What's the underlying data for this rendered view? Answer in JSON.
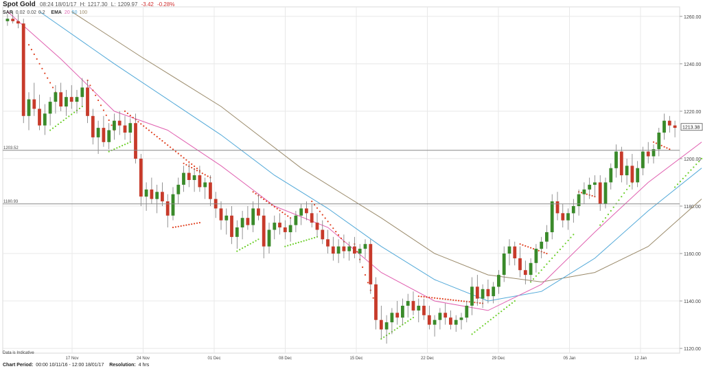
{
  "header": {
    "title": "Spot Gold",
    "timestamp": "08:24 18/01/17",
    "high_label": "H:",
    "high": "1217.30",
    "low_label": "L:",
    "low": "1209.97",
    "change": "-3.42",
    "change_pct": "-0.28%"
  },
  "indicators": {
    "sar_label": "SAR",
    "sar_params": [
      "0.02",
      "0.02",
      "0.2"
    ],
    "ema_label": "EMA",
    "ema_params": [
      "20",
      "50",
      "100"
    ]
  },
  "footer": {
    "indicative": "Data is Indicative",
    "period_label": "Chart Period:",
    "period": "00:00 10/11/16 - 12:00 18/01/17",
    "resolution_label": "Resolution:",
    "resolution": "4 hrs"
  },
  "chart_data": {
    "type": "candlestick",
    "title": "Spot Gold",
    "ylim": [
      1118,
      1264
    ],
    "y_ticks": [
      1120,
      1140,
      1160,
      1180,
      1200,
      1220,
      1240,
      1260
    ],
    "y_tick_labels": [
      "1120.00",
      "1140.00",
      "1160.00",
      "1180.00",
      "1200.00",
      "1220.00",
      "1240.00",
      "1260.00"
    ],
    "x_tick_labels": [
      "17 Nov",
      "24 Nov",
      "01 Dec",
      "08 Dec",
      "15 Dec",
      "22 Dec",
      "29 Dec",
      "05 Jan",
      "12 Jan"
    ],
    "last_price": "1213.38",
    "reference_lines": [
      {
        "value": 1203.52,
        "label": "1203.52"
      },
      {
        "value": 1180.93,
        "label": "1180.93"
      }
    ],
    "colors": {
      "up": "#3a8a2a",
      "down": "#c73a2a",
      "ema20": "#e060b0",
      "ema50": "#50a8d8",
      "ema100": "#9a8a6a",
      "sar_up": "#6ccf2a",
      "sar_down": "#e04020",
      "grid": "#e8e8e8",
      "ref": "#888888"
    },
    "grid": true,
    "candles": [
      [
        1258,
        1261,
        1256,
        1259
      ],
      [
        1259,
        1262,
        1257,
        1258
      ],
      [
        1258,
        1261,
        1255,
        1257
      ],
      [
        1257,
        1259,
        1215,
        1218
      ],
      [
        1218,
        1228,
        1212,
        1225
      ],
      [
        1225,
        1232,
        1218,
        1221
      ],
      [
        1221,
        1227,
        1212,
        1214
      ],
      [
        1214,
        1223,
        1210,
        1219
      ],
      [
        1219,
        1226,
        1214,
        1224
      ],
      [
        1224,
        1231,
        1219,
        1228
      ],
      [
        1228,
        1232,
        1220,
        1222
      ],
      [
        1222,
        1229,
        1218,
        1226
      ],
      [
        1226,
        1231,
        1221,
        1224
      ],
      [
        1224,
        1229,
        1219,
        1226
      ],
      [
        1226,
        1234,
        1222,
        1230
      ],
      [
        1230,
        1233,
        1215,
        1218
      ],
      [
        1218,
        1221,
        1206,
        1209
      ],
      [
        1209,
        1216,
        1202,
        1213
      ],
      [
        1213,
        1218,
        1205,
        1207
      ],
      [
        1207,
        1215,
        1204,
        1212
      ],
      [
        1212,
        1219,
        1208,
        1216
      ],
      [
        1216,
        1220,
        1210,
        1214
      ],
      [
        1214,
        1218,
        1208,
        1211
      ],
      [
        1211,
        1217,
        1207,
        1215
      ],
      [
        1215,
        1219,
        1198,
        1200
      ],
      [
        1200,
        1202,
        1180,
        1184
      ],
      [
        1184,
        1190,
        1178,
        1187
      ],
      [
        1187,
        1192,
        1181,
        1183
      ],
      [
        1183,
        1189,
        1177,
        1186
      ],
      [
        1186,
        1190,
        1180,
        1182
      ],
      [
        1182,
        1185,
        1171,
        1176
      ],
      [
        1176,
        1188,
        1174,
        1185
      ],
      [
        1185,
        1192,
        1181,
        1189
      ],
      [
        1189,
        1197,
        1186,
        1194
      ],
      [
        1194,
        1198,
        1188,
        1191
      ],
      [
        1191,
        1196,
        1186,
        1193
      ],
      [
        1193,
        1197,
        1186,
        1188
      ],
      [
        1188,
        1192,
        1183,
        1190
      ],
      [
        1190,
        1193,
        1180,
        1183
      ],
      [
        1183,
        1186,
        1175,
        1179
      ],
      [
        1179,
        1182,
        1170,
        1174
      ],
      [
        1174,
        1179,
        1168,
        1176
      ],
      [
        1176,
        1180,
        1164,
        1167
      ],
      [
        1167,
        1174,
        1162,
        1171
      ],
      [
        1171,
        1178,
        1166,
        1175
      ],
      [
        1175,
        1180,
        1170,
        1172
      ],
      [
        1172,
        1182,
        1169,
        1179
      ],
      [
        1179,
        1185,
        1174,
        1176
      ],
      [
        1176,
        1179,
        1158,
        1163
      ],
      [
        1163,
        1173,
        1160,
        1170
      ],
      [
        1170,
        1176,
        1166,
        1173
      ],
      [
        1173,
        1177,
        1168,
        1171
      ],
      [
        1171,
        1174,
        1166,
        1169
      ],
      [
        1169,
        1175,
        1165,
        1172
      ],
      [
        1172,
        1178,
        1169,
        1176
      ],
      [
        1176,
        1181,
        1172,
        1179
      ],
      [
        1179,
        1182,
        1174,
        1177
      ],
      [
        1177,
        1181,
        1171,
        1173
      ],
      [
        1173,
        1177,
        1167,
        1170
      ],
      [
        1170,
        1174,
        1164,
        1166
      ],
      [
        1166,
        1170,
        1160,
        1163
      ],
      [
        1163,
        1167,
        1157,
        1160
      ],
      [
        1160,
        1166,
        1156,
        1163
      ],
      [
        1163,
        1168,
        1158,
        1161
      ],
      [
        1161,
        1165,
        1157,
        1163
      ],
      [
        1163,
        1167,
        1158,
        1160
      ],
      [
        1160,
        1164,
        1156,
        1162
      ],
      [
        1162,
        1166,
        1158,
        1164
      ],
      [
        1164,
        1166,
        1143,
        1147
      ],
      [
        1147,
        1150,
        1128,
        1132
      ],
      [
        1132,
        1138,
        1124,
        1128
      ],
      [
        1128,
        1134,
        1122,
        1131
      ],
      [
        1131,
        1137,
        1126,
        1135
      ],
      [
        1135,
        1140,
        1130,
        1133
      ],
      [
        1133,
        1141,
        1130,
        1138
      ],
      [
        1138,
        1143,
        1133,
        1140
      ],
      [
        1140,
        1144,
        1134,
        1136
      ],
      [
        1136,
        1141,
        1131,
        1138
      ],
      [
        1138,
        1141,
        1132,
        1134
      ],
      [
        1134,
        1138,
        1128,
        1130
      ],
      [
        1130,
        1134,
        1125,
        1132
      ],
      [
        1132,
        1137,
        1128,
        1135
      ],
      [
        1135,
        1139,
        1130,
        1133
      ],
      [
        1133,
        1136,
        1128,
        1130
      ],
      [
        1130,
        1134,
        1127,
        1132
      ],
      [
        1132,
        1135,
        1128,
        1133
      ],
      [
        1133,
        1140,
        1131,
        1138
      ],
      [
        1138,
        1150,
        1134,
        1146
      ],
      [
        1146,
        1151,
        1138,
        1141
      ],
      [
        1141,
        1147,
        1137,
        1145
      ],
      [
        1145,
        1149,
        1139,
        1142
      ],
      [
        1142,
        1148,
        1139,
        1146
      ],
      [
        1146,
        1153,
        1143,
        1151
      ],
      [
        1151,
        1163,
        1148,
        1160
      ],
      [
        1160,
        1166,
        1155,
        1163
      ],
      [
        1163,
        1165,
        1155,
        1158
      ],
      [
        1158,
        1163,
        1150,
        1153
      ],
      [
        1153,
        1157,
        1147,
        1151
      ],
      [
        1151,
        1158,
        1148,
        1156
      ],
      [
        1156,
        1164,
        1152,
        1162
      ],
      [
        1162,
        1167,
        1158,
        1165
      ],
      [
        1165,
        1172,
        1162,
        1169
      ],
      [
        1169,
        1185,
        1166,
        1182
      ],
      [
        1182,
        1186,
        1174,
        1177
      ],
      [
        1177,
        1181,
        1171,
        1174
      ],
      [
        1174,
        1179,
        1170,
        1177
      ],
      [
        1177,
        1183,
        1173,
        1180
      ],
      [
        1180,
        1187,
        1176,
        1185
      ],
      [
        1185,
        1190,
        1181,
        1187
      ],
      [
        1187,
        1192,
        1183,
        1189
      ],
      [
        1189,
        1193,
        1184,
        1190
      ],
      [
        1190,
        1193,
        1178,
        1181
      ],
      [
        1181,
        1192,
        1179,
        1190
      ],
      [
        1190,
        1198,
        1187,
        1196
      ],
      [
        1196,
        1206,
        1192,
        1203
      ],
      [
        1203,
        1205,
        1190,
        1193
      ],
      [
        1193,
        1200,
        1189,
        1197
      ],
      [
        1197,
        1202,
        1187,
        1190
      ],
      [
        1190,
        1199,
        1188,
        1196
      ],
      [
        1196,
        1205,
        1193,
        1203
      ],
      [
        1203,
        1207,
        1198,
        1201
      ],
      [
        1201,
        1206,
        1198,
        1204
      ],
      [
        1204,
        1213,
        1201,
        1211
      ],
      [
        1211,
        1219,
        1208,
        1216
      ],
      [
        1216,
        1218,
        1211,
        1214
      ],
      [
        1214,
        1216,
        1209,
        1213
      ]
    ],
    "ema20": [
      [
        0,
        1262
      ],
      [
        10,
        1242
      ],
      [
        20,
        1220
      ],
      [
        30,
        1212
      ],
      [
        40,
        1197
      ],
      [
        50,
        1180
      ],
      [
        60,
        1171
      ],
      [
        70,
        1152
      ],
      [
        80,
        1140
      ],
      [
        90,
        1136
      ],
      [
        100,
        1147
      ],
      [
        110,
        1169
      ],
      [
        120,
        1190
      ],
      [
        130,
        1207
      ]
    ],
    "ema50": [
      [
        6,
        1262
      ],
      [
        20,
        1240
      ],
      [
        30,
        1225
      ],
      [
        40,
        1210
      ],
      [
        50,
        1193
      ],
      [
        60,
        1179
      ],
      [
        70,
        1163
      ],
      [
        80,
        1149
      ],
      [
        90,
        1140
      ],
      [
        100,
        1144
      ],
      [
        110,
        1158
      ],
      [
        120,
        1178
      ],
      [
        130,
        1196
      ]
    ],
    "ema100": [
      [
        12,
        1262
      ],
      [
        25,
        1243
      ],
      [
        40,
        1222
      ],
      [
        55,
        1196
      ],
      [
        70,
        1175
      ],
      [
        80,
        1160
      ],
      [
        90,
        1151
      ],
      [
        100,
        1148
      ],
      [
        110,
        1152
      ],
      [
        120,
        1163
      ],
      [
        130,
        1183
      ]
    ],
    "sar": [
      {
        "x0": 4,
        "x1": 9,
        "y0": 1248,
        "y1": 1228,
        "dir": "down"
      },
      {
        "x0": 8,
        "x1": 14,
        "y0": 1212,
        "y1": 1222,
        "dir": "up"
      },
      {
        "x0": 15,
        "x1": 20,
        "y0": 1233,
        "y1": 1212,
        "dir": "down"
      },
      {
        "x0": 19,
        "x1": 23,
        "y0": 1203,
        "y1": 1207,
        "dir": "up"
      },
      {
        "x0": 22,
        "x1": 36,
        "y0": 1220,
        "y1": 1195,
        "dir": "down"
      },
      {
        "x0": 31,
        "x1": 36,
        "y0": 1171,
        "y1": 1173,
        "dir": "down"
      },
      {
        "x0": 33,
        "x1": 38,
        "y0": 1198,
        "y1": 1192,
        "dir": "down"
      },
      {
        "x0": 43,
        "x1": 47,
        "y0": 1161,
        "y1": 1166,
        "dir": "up"
      },
      {
        "x0": 46,
        "x1": 53,
        "y0": 1186,
        "y1": 1175,
        "dir": "down"
      },
      {
        "x0": 52,
        "x1": 58,
        "y0": 1163,
        "y1": 1167,
        "dir": "up"
      },
      {
        "x0": 57,
        "x1": 63,
        "y0": 1182,
        "y1": 1165,
        "dir": "down"
      },
      {
        "x0": 65,
        "x1": 69,
        "y0": 1164,
        "y1": 1138,
        "dir": "down"
      },
      {
        "x0": 70,
        "x1": 76,
        "y0": 1124,
        "y1": 1133,
        "dir": "up"
      },
      {
        "x0": 77,
        "x1": 89,
        "y0": 1142,
        "y1": 1139,
        "dir": "down"
      },
      {
        "x0": 87,
        "x1": 95,
        "y0": 1126,
        "y1": 1140,
        "dir": "up"
      },
      {
        "x0": 96,
        "x1": 101,
        "y0": 1164,
        "y1": 1160,
        "dir": "down"
      },
      {
        "x0": 98,
        "x1": 106,
        "y0": 1148,
        "y1": 1168,
        "dir": "up"
      },
      {
        "x0": 107,
        "x1": 110,
        "y0": 1186,
        "y1": 1184,
        "dir": "down"
      },
      {
        "x0": 111,
        "x1": 117,
        "y0": 1172,
        "y1": 1190,
        "dir": "up"
      },
      {
        "x0": 121,
        "x1": 124,
        "y0": 1207,
        "y1": 1204,
        "dir": "down"
      },
      {
        "x0": 125,
        "x1": 130,
        "y0": 1188,
        "y1": 1200,
        "dir": "up"
      }
    ]
  }
}
